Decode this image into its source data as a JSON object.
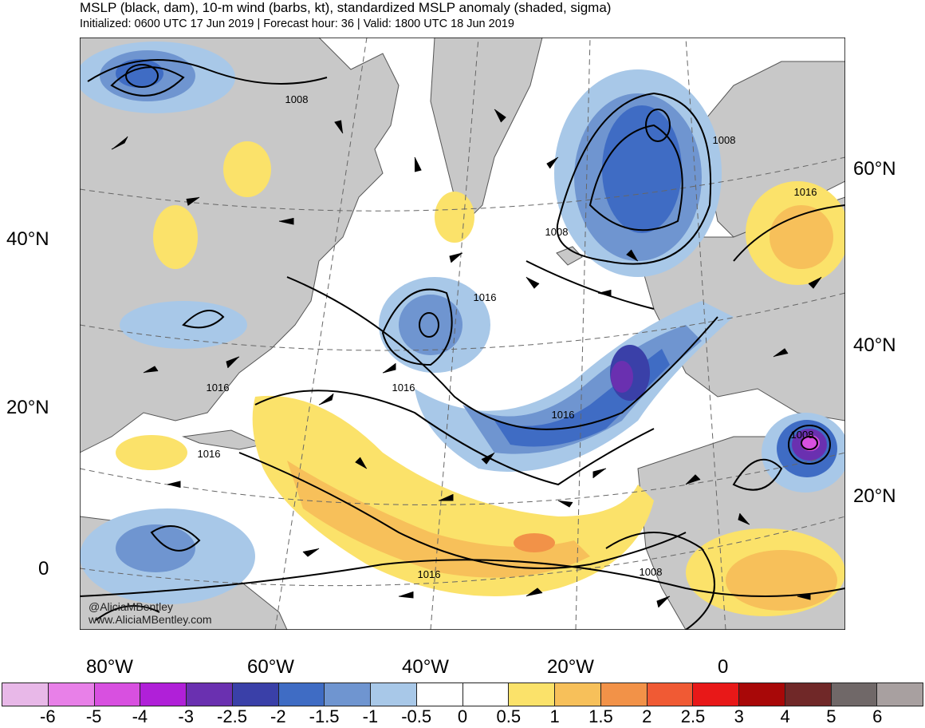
{
  "header": {
    "title": "MSLP (black, dam), 10-m wind (barbs, kt), standardized MSLP anomaly (shaded, sigma)",
    "subtitle": "Initialized: 0600 UTC 17 Jun 2019 | Forecast hour: 36 | Valid: 1800 UTC 18 Jun 2019"
  },
  "map": {
    "left_lat_labels": [
      "40°N",
      "20°N",
      "0"
    ],
    "right_lat_labels": [
      "60°N",
      "40°N",
      "20°N"
    ],
    "lon_labels": [
      "80°W",
      "60°W",
      "40°W",
      "20°W",
      "0"
    ],
    "contour_labels": [
      "1008",
      "1008",
      "1008",
      "1008",
      "1016",
      "1016",
      "1016",
      "1016",
      "1016",
      "1016",
      "1008",
      "1016"
    ],
    "credits": [
      "@AliciaMBentley",
      "www.AliciaMBentley.com"
    ],
    "colors": {
      "land": "#c8c8c8",
      "ocean": "#ffffff",
      "contour": "#000000",
      "coast": "#444444"
    }
  },
  "colorbar": {
    "colors": [
      "#e8b8e8",
      "#e880e8",
      "#d850e0",
      "#b020d8",
      "#6a30b0",
      "#3a40a8",
      "#3f6cc4",
      "#6f95d0",
      "#a8c8e8",
      "#ffffff",
      "#ffffff",
      "#fbe26a",
      "#f7c05a",
      "#f29248",
      "#f05a34",
      "#e81818",
      "#a80808",
      "#702828",
      "#706868",
      "#a8a0a0"
    ],
    "ticks": [
      "-6",
      "-5",
      "-4",
      "-3",
      "-2.5",
      "-2",
      "-1.5",
      "-1",
      "-0.5",
      "0",
      "0.5",
      "1",
      "1.5",
      "2",
      "2.5",
      "3",
      "4",
      "5",
      "6"
    ]
  }
}
